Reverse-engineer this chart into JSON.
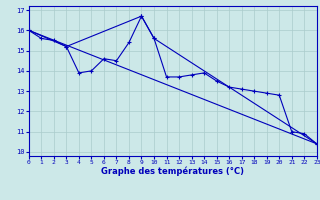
{
  "line1_x": [
    0,
    1,
    2,
    3,
    4,
    5,
    6,
    7,
    8,
    9,
    10,
    11,
    12,
    13,
    14,
    15,
    16,
    17,
    18,
    19,
    20,
    21,
    22,
    23
  ],
  "line1_y": [
    16.0,
    15.6,
    15.5,
    15.2,
    13.9,
    14.0,
    14.6,
    14.5,
    15.4,
    16.7,
    15.6,
    13.7,
    13.7,
    13.8,
    13.9,
    13.5,
    13.2,
    13.1,
    13.0,
    12.9,
    12.8,
    11.0,
    10.9,
    10.4
  ],
  "line2_x": [
    0,
    3,
    9,
    10,
    23
  ],
  "line2_y": [
    16.0,
    15.2,
    16.7,
    15.6,
    10.4
  ],
  "line3_x": [
    0,
    23
  ],
  "line3_y": [
    16.0,
    10.4
  ],
  "bg_color": "#cce8e8",
  "grid_color": "#aacccc",
  "line_color": "#0000bb",
  "xlabel": "Graphe des températures (°C)",
  "xlim": [
    0,
    23
  ],
  "ylim": [
    9.8,
    17.2
  ],
  "yticks": [
    10,
    11,
    12,
    13,
    14,
    15,
    16,
    17
  ],
  "xticks": [
    0,
    1,
    2,
    3,
    4,
    5,
    6,
    7,
    8,
    9,
    10,
    11,
    12,
    13,
    14,
    15,
    16,
    17,
    18,
    19,
    20,
    21,
    22,
    23
  ]
}
